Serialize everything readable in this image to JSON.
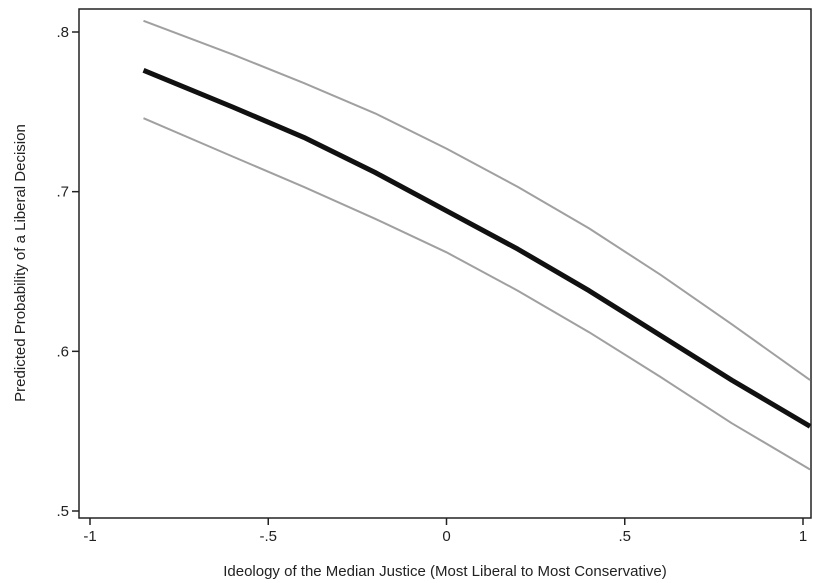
{
  "chart_data": {
    "type": "line",
    "title": "",
    "xlabel": "Ideology of the Median Justice (Most Liberal to Most Conservative)",
    "ylabel": "Predicted Probability of a Liberal Decision",
    "xlim": [
      -1.0,
      1.02
    ],
    "ylim": [
      0.49,
      0.82
    ],
    "xticks": [
      -1,
      -0.5,
      0,
      0.5,
      1
    ],
    "xtick_labels": [
      "-1",
      "-.5",
      "0",
      ".5",
      "1"
    ],
    "yticks": [
      0.5,
      0.6,
      0.7,
      0.8
    ],
    "ytick_labels": [
      ".5",
      ".6",
      ".7",
      ".8"
    ],
    "grid": false,
    "legend": "none",
    "series": [
      {
        "role": "upper-bound",
        "color": "#a0a0a0",
        "x": [
          -0.85,
          -0.6,
          -0.4,
          -0.2,
          0.0,
          0.2,
          0.4,
          0.6,
          0.8,
          1.02
        ],
        "y": [
          0.807,
          0.786,
          0.768,
          0.749,
          0.727,
          0.703,
          0.677,
          0.648,
          0.617,
          0.582
        ]
      },
      {
        "role": "estimate",
        "color": "#111111",
        "x": [
          -0.85,
          -0.6,
          -0.4,
          -0.2,
          0.0,
          0.2,
          0.4,
          0.6,
          0.8,
          1.02
        ],
        "y": [
          0.776,
          0.753,
          0.734,
          0.712,
          0.688,
          0.664,
          0.638,
          0.61,
          0.582,
          0.553
        ]
      },
      {
        "role": "lower-bound",
        "color": "#a0a0a0",
        "x": [
          -0.85,
          -0.6,
          -0.4,
          -0.2,
          0.0,
          0.2,
          0.4,
          0.6,
          0.8,
          1.02
        ],
        "y": [
          0.746,
          0.722,
          0.703,
          0.683,
          0.662,
          0.638,
          0.612,
          0.584,
          0.555,
          0.526
        ]
      }
    ]
  }
}
